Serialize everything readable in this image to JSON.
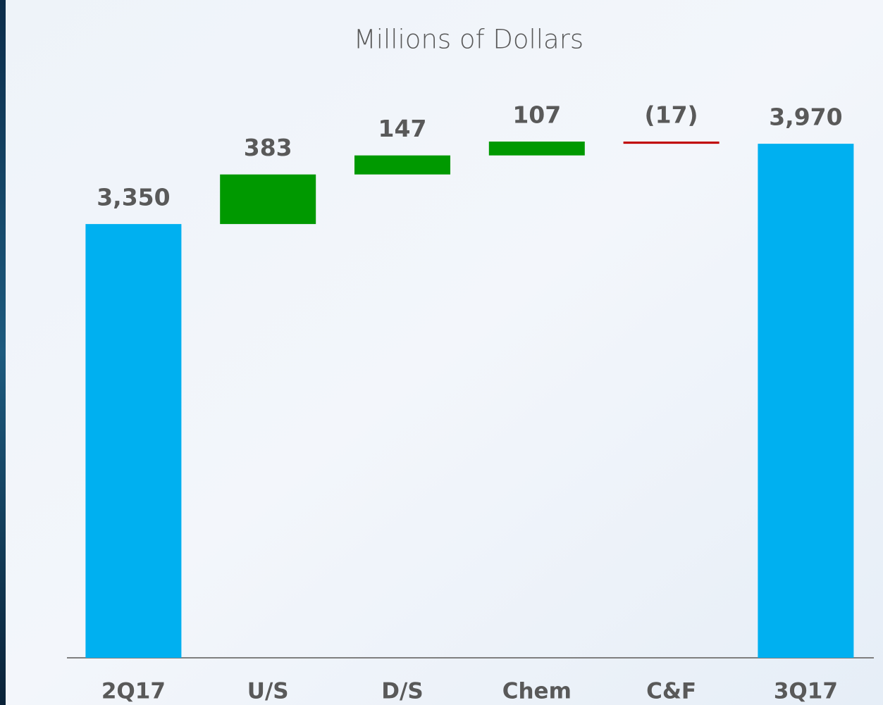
{
  "chart_data": {
    "type": "waterfall",
    "title": "Millions of Dollars",
    "categories": [
      "2Q17",
      "U/S",
      "D/S",
      "Chem",
      "C&F",
      "3Q17"
    ],
    "values": [
      3350,
      383,
      147,
      107,
      -17,
      3970
    ],
    "value_labels": [
      "3,350",
      "383",
      "147",
      "107",
      "(17)",
      "3,970"
    ],
    "colors": [
      "#00b0f0",
      "#009900",
      "#009900",
      "#009900",
      "#c00000",
      "#00b0f0"
    ]
  }
}
